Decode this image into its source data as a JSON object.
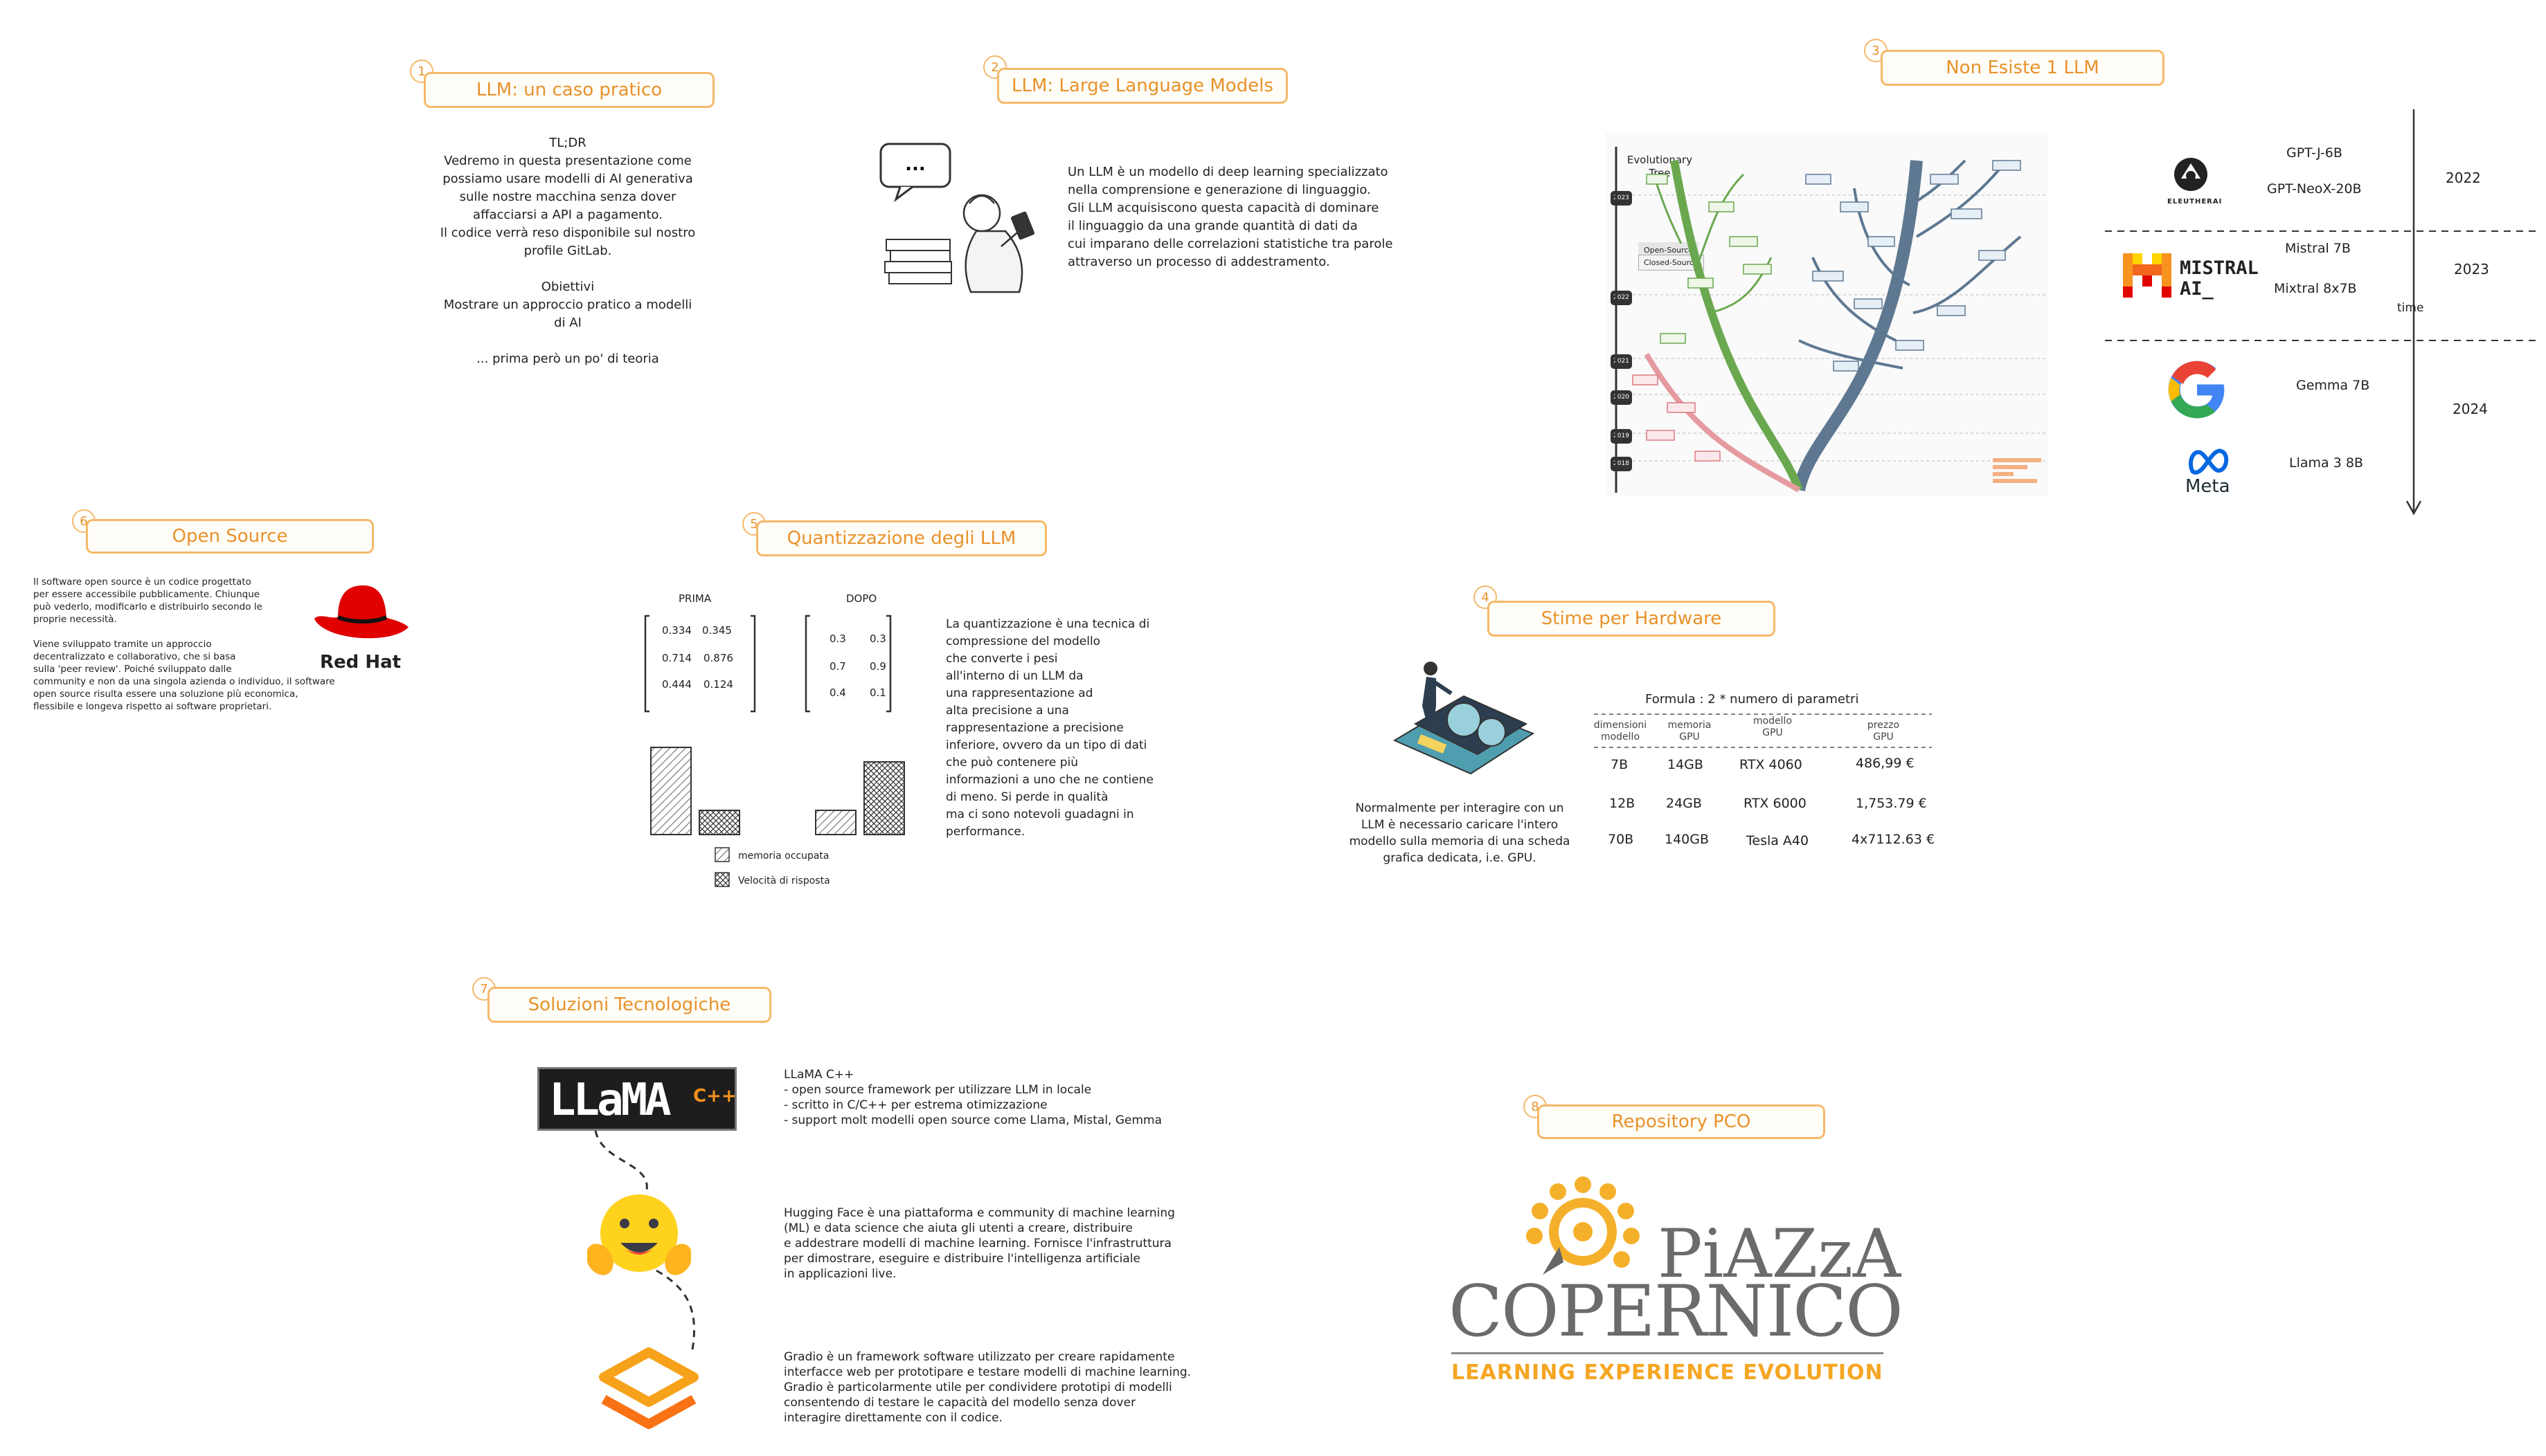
{
  "slides": {
    "s1": {
      "num": "1",
      "title": "LLM: un caso pratico",
      "body": "TL;DR\nVedremo in questa presentazione come\npossiamo usare modelli di AI generativa\nsulle nostre macchina senza dover\naffacciarsi a API a pagamento.\nIl codice verrà reso disponibile sul nostro\nprofile GitLab.\n\nObiettivi\nMostrare un approccio pratico a modelli\ndi AI\n\n... prima però un po' di teoria"
    },
    "s2": {
      "num": "2",
      "title": "LLM: Large Language Models",
      "bubble": "...",
      "body": "Un LLM è un modello di deep learning specializzato\nnella comprensione e generazione di linguaggio.\nGli LLM acquisiscono questa capacità di dominare\nil linguaggio da una grande quantità di dati da\ncui imparano delle correlazioni statistiche tra parole\nattraverso un processo di addestramento."
    },
    "s3": {
      "num": "3",
      "title": "Non Esiste 1 LLM",
      "tree_title": "Evolutionary\nTree",
      "legend_open": "Open-Source",
      "legend_closed": "Closed-Source",
      "years": [
        "2023",
        "2022",
        "2021",
        "2020",
        "2019",
        "2018"
      ],
      "timeline_label": "time",
      "timeline": [
        {
          "year": "2022",
          "models": [
            "GPT-J-6B",
            "GPT-NeoX-20B"
          ],
          "logo": "ELEUTHERAI"
        },
        {
          "year": "2023",
          "models": [
            "Mistral 7B",
            "Mixtral 8x7B"
          ],
          "logo_line1": "MISTRAL",
          "logo_line2": "AI_"
        },
        {
          "year": "2024",
          "models": [
            "Gemma 7B",
            "Llama 3 8B"
          ],
          "logo": "Meta"
        }
      ]
    },
    "s4": {
      "num": "4",
      "title": "Stime per Hardware",
      "body": "Normalmente per interagire con un\nLLM è necessario caricare l'intero\nmodello sulla memoria di una scheda\ngrafica dedicata, i.e. GPU.",
      "formula": "Formula : 2 * numero di parametri",
      "headers": [
        "dimensioni\nmodello",
        "memoria\nGPU",
        "modello\nGPU",
        "prezzo\nGPU"
      ],
      "rows": [
        [
          "7B",
          "14GB",
          "RTX 4060",
          "486,99 €"
        ],
        [
          "12B",
          "24GB",
          "RTX 6000",
          "1,753.79 €"
        ],
        [
          "70B",
          "140GB",
          "Tesla A40",
          "4x7112.63 €"
        ]
      ]
    },
    "s5": {
      "num": "5",
      "title": "Quantizzazione degli LLM",
      "before_label": "PRIMA",
      "after_label": "DOPO",
      "before_matrix": [
        [
          "0.334",
          "0.345"
        ],
        [
          "0.714",
          "0.876"
        ],
        [
          "0.444",
          "0.124"
        ]
      ],
      "after_matrix": [
        [
          "0.3",
          "0.3"
        ],
        [
          "0.7",
          "0.9"
        ],
        [
          "0.4",
          "0.1"
        ]
      ],
      "legend_memory": "memoria occupata",
      "legend_speed": "Velocità di risposta",
      "body": "La quantizzazione è una tecnica di\ncompressione del modello\nche converte i pesi\nall'interno di un LLM da\nuna rappresentazione ad\nalta precisione a una\nrappresentazione a precisione\ninferiore, ovvero da un tipo di dati\nche può contenere più\ninformazioni a uno che ne contiene\ndi meno. Si perde in qualità\nma ci sono notevoli guadagni in\nperformance."
    },
    "s6": {
      "num": "6",
      "title": "Open Source",
      "logo": "Red Hat",
      "body": "Il software open source è un codice progettato\nper essere accessibile pubblicamente. Chiunque\npuò vederlo, modificarlo e distribuirlo secondo le\nproprie necessità.\n\nViene sviluppato tramite un approccio\ndecentralizzato e collaborativo, che si basa\nsulla 'peer review'. Poiché sviluppato dalle\ncommunity e non da una singola azienda o individuo, il software\nopen source risulta essere una soluzione più economica,\nflessibile e longeva rispetto ai software proprietari."
    },
    "s7": {
      "num": "7",
      "title": "Soluzioni Tecnologiche",
      "llama_logo": "LLaMA",
      "llama_logo_suffix": "C++",
      "llama_text": "LLaMA C++\n- open source framework per utilizzare LLM in locale\n- scritto in C/C++ per estrema otimizzazione\n- support molt modelli open source come Llama, Mistal, Gemma",
      "hf_text": "Hugging Face è una piattaforma e community di machine learning\n(ML) e data science che aiuta gli utenti a creare, distribuire\ne addestrare modelli di machine learning. Fornisce l'infrastruttura\nper dimostrare, eseguire e distribuire l'intelligenza artificiale\nin applicazioni live.",
      "gradio_text": "Gradio è un framework software utilizzato per creare rapidamente\ninterfacce web per prototipare e testare modelli di machine learning.\nGradio è particolarmente utile per condividere prototipi di modelli\nconsentendo di testare le capacità del modello senza dover\ninteragire direttamente con il codice."
    },
    "s8": {
      "num": "8",
      "title": "Repository PCO",
      "logo_line1": "PiAZzA",
      "logo_line2": "COPERNICO",
      "logo_tagline": "LEARNING EXPERIENCE EVOLUTION"
    }
  },
  "chart_data": {
    "type": "bar",
    "categories": [
      "PRIMA",
      "DOPO"
    ],
    "series": [
      {
        "name": "memoria occupata",
        "values": [
          0.9,
          0.25
        ]
      },
      {
        "name": "Velocità di risposta",
        "values": [
          0.25,
          0.75
        ]
      }
    ]
  },
  "colors": {
    "accent": "#f5b96a",
    "accent_text": "#e8922a",
    "redhat": "#e00000",
    "mistral": "#f7931e",
    "gradio": "#f7a21b",
    "hf": "#ffcc4d"
  }
}
